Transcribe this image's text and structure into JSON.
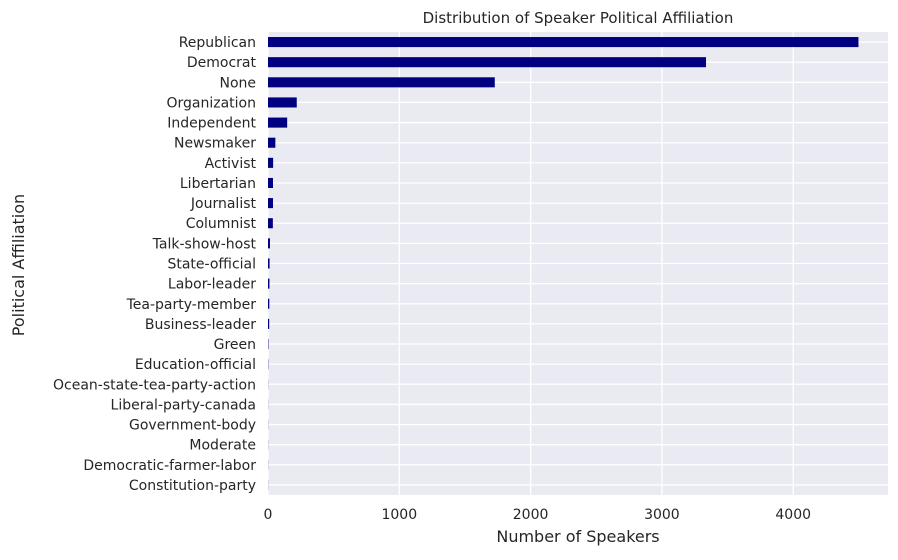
{
  "chart_data": {
    "type": "bar",
    "orientation": "horizontal",
    "title": "Distribution of Speaker Political Affiliation",
    "xlabel": "Number of Speakers",
    "ylabel": "Political Affiliation",
    "categories": [
      "Republican",
      "Democrat",
      "None",
      "Organization",
      "Independent",
      "Newsmaker",
      "Activist",
      "Libertarian",
      "Journalist",
      "Columnist",
      "Talk-show-host",
      "State-official",
      "Labor-leader",
      "Tea-party-member",
      "Business-leader",
      "Green",
      "Education-official",
      "Ocean-state-tea-party-action",
      "Liberal-party-canada",
      "Government-body",
      "Moderate",
      "Democratic-farmer-labor",
      "Constitution-party"
    ],
    "values": [
      4497,
      3336,
      1727,
      219,
      146,
      56,
      39,
      38,
      38,
      37,
      15,
      12,
      11,
      10,
      9,
      3,
      2,
      1,
      1,
      1,
      1,
      1,
      1
    ],
    "xlim": [
      0,
      4722
    ],
    "xticks": [
      0,
      1000,
      2000,
      3000,
      4000
    ],
    "grid": true,
    "bar_color": "#000080",
    "background_color": "#eaeaf2",
    "grid_color": "#ffffff"
  }
}
